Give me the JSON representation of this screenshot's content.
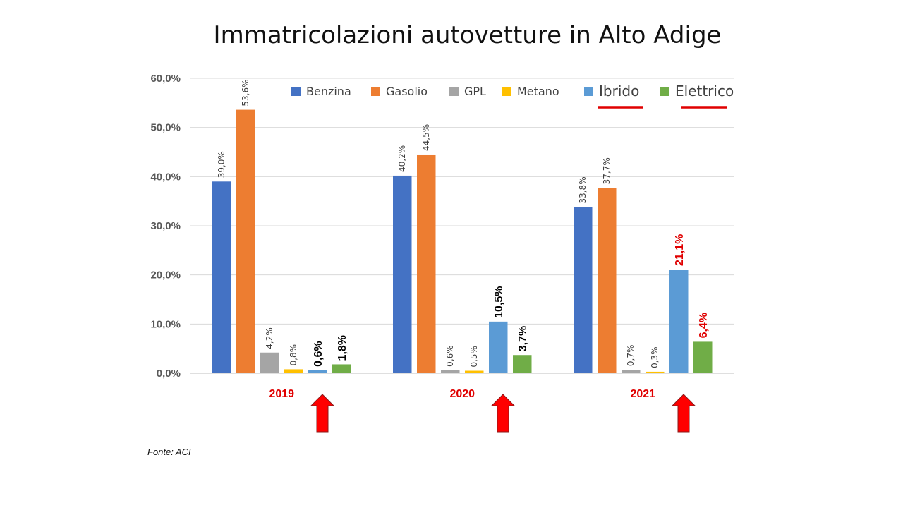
{
  "slide": {
    "title": "Immatricolazioni autovetture in Alto Adige",
    "source": "Fonte: ACI"
  },
  "chart_data": {
    "type": "bar",
    "categories": [
      "2019",
      "2020",
      "2021"
    ],
    "series": [
      {
        "name": "Benzina",
        "color": "#4472C4",
        "values": [
          39.0,
          40.2,
          33.8
        ],
        "labels": [
          "39,0%",
          "40,2%",
          "33,8%"
        ],
        "label_styles": [
          "normal",
          "normal",
          "normal"
        ]
      },
      {
        "name": "Gasolio",
        "color": "#ED7D31",
        "values": [
          53.6,
          44.5,
          37.7
        ],
        "labels": [
          "53,6%",
          "44,5%",
          "37,7%"
        ],
        "label_styles": [
          "normal",
          "normal",
          "normal"
        ]
      },
      {
        "name": "GPL",
        "color": "#A5A5A5",
        "values": [
          4.2,
          0.6,
          0.7
        ],
        "labels": [
          "4,2%",
          "0,6%",
          "0,7%"
        ],
        "label_styles": [
          "normal",
          "normal",
          "normal"
        ]
      },
      {
        "name": "Metano",
        "color": "#FFC000",
        "values": [
          0.8,
          0.5,
          0.3
        ],
        "labels": [
          "0,8%",
          "0,5%",
          "0,3%"
        ],
        "label_styles": [
          "normal",
          "normal",
          "normal"
        ]
      },
      {
        "name": "Ibrido",
        "color": "#5B9BD5",
        "values": [
          0.6,
          10.5,
          21.1
        ],
        "labels": [
          "0,6%",
          "10,5%",
          "21,1%"
        ],
        "label_styles": [
          "bold",
          "bold",
          "red"
        ]
      },
      {
        "name": "Elettrico",
        "color": "#70AD47",
        "values": [
          1.8,
          3.7,
          6.4
        ],
        "labels": [
          "1,8%",
          "3,7%",
          "6,4%"
        ],
        "label_styles": [
          "bold",
          "bold",
          "red"
        ]
      }
    ],
    "ylim": [
      0,
      60
    ],
    "yticks": [
      "0,0%",
      "10,0%",
      "20,0%",
      "30,0%",
      "40,0%",
      "50,0%",
      "60,0%"
    ],
    "grid": true,
    "legend": "top-right",
    "highlighted_legend": [
      "Ibrido",
      "Elettrico"
    ],
    "category_label_color": "#E00000",
    "arrow_color": "#FF0000",
    "arrows_under": "Elettrico"
  }
}
